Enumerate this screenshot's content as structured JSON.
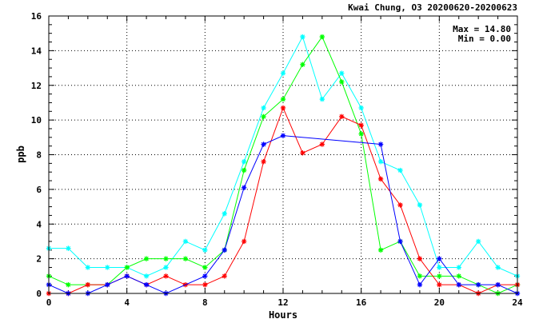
{
  "chart_data": {
    "type": "line",
    "title": "Kwai Chung, O3 20200620-20200623",
    "xlabel": "Hours",
    "ylabel": "ppb",
    "xlim": [
      0,
      24
    ],
    "ylim": [
      0,
      16
    ],
    "xticks": [
      "0",
      "4",
      "8",
      "12",
      "16",
      "20",
      "24"
    ],
    "yticks": [
      "0",
      "2",
      "4",
      "6",
      "8",
      "10",
      "12",
      "14",
      "16"
    ],
    "grid": true,
    "stats": {
      "max_label": "Max = 14.80",
      "min_label": "Min =  0.00"
    },
    "x": [
      0,
      1,
      2,
      3,
      4,
      5,
      6,
      7,
      8,
      9,
      10,
      11,
      12,
      13,
      14,
      15,
      16,
      17,
      18,
      19,
      20,
      21,
      22,
      23,
      24
    ],
    "series": [
      {
        "color": "#00ffff",
        "values": [
          2.6,
          2.6,
          1.5,
          1.5,
          1.5,
          1.0,
          1.5,
          3.0,
          2.5,
          4.6,
          7.6,
          10.7,
          12.7,
          14.8,
          11.2,
          12.7,
          10.7,
          7.6,
          7.1,
          5.1,
          1.5,
          1.5,
          3.0,
          1.5,
          1.0
        ]
      },
      {
        "color": "#00ff00",
        "values": [
          1.0,
          0.5,
          0.5,
          0.5,
          1.5,
          2.0,
          2.0,
          2.0,
          1.5,
          2.5,
          7.1,
          10.2,
          11.2,
          13.2,
          14.8,
          12.2,
          9.2,
          2.5,
          3.0,
          1.0,
          1.0,
          1.0,
          0.5,
          0.0,
          0.5
        ]
      },
      {
        "color": "#ff0000",
        "values": [
          0.0,
          0.0,
          0.5,
          0.5,
          1.0,
          0.5,
          1.0,
          0.5,
          0.5,
          1.0,
          3.0,
          7.6,
          10.7,
          8.1,
          8.6,
          10.2,
          9.7,
          6.6,
          5.1,
          2.0,
          0.5,
          0.5,
          0.0,
          0.5,
          0.5
        ]
      },
      {
        "color": "#0000ff",
        "values": [
          0.5,
          0.0,
          0.0,
          0.5,
          1.0,
          0.5,
          0.0,
          null,
          1.0,
          2.5,
          6.1,
          8.6,
          9.1,
          null,
          null,
          null,
          null,
          8.6,
          3.0,
          0.5,
          2.0,
          0.5,
          0.5,
          0.5,
          0.0
        ]
      }
    ]
  }
}
